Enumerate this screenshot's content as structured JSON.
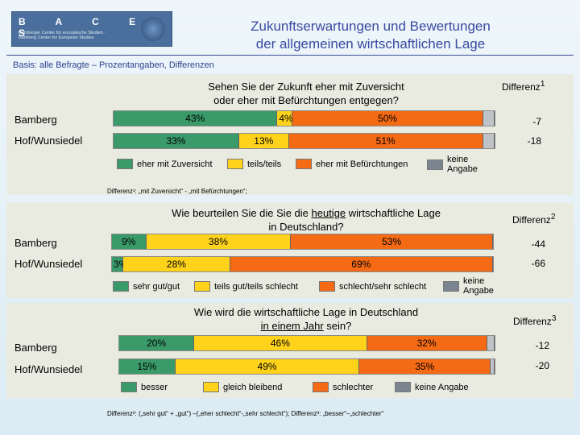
{
  "logo": {
    "word": "B A C E S",
    "tag": "Bamberger Center für europäische Studien · Bamberg Center for European Studies"
  },
  "title_line1": "Zukunftserwartungen und Bewertungen",
  "title_line2": "der allgemeinen wirtschaftlichen Lage",
  "basis": "Basis: alle Befragte – Prozentangaben, Differenzen",
  "colors": {
    "green": "#3a9a6a",
    "yellow": "#ffd21c",
    "orange": "#f56a14",
    "gray": "#bfc3c8",
    "darkgray": "#7a8590"
  },
  "chart_data": [
    {
      "type": "bar",
      "title_line1": "Sehen Sie der Zukunft eher mit Zuversicht",
      "title_line2": "oder eher mit Befürchtungen entgegen?",
      "diff_title": "Differenz",
      "diff_sup": "1",
      "categories": [
        "Bamberg",
        "Hof/Wunsiedel"
      ],
      "series": [
        {
          "name": "eher mit Zuversicht",
          "values": [
            43,
            33
          ]
        },
        {
          "name": "teils/teils",
          "values": [
            4,
            13
          ]
        },
        {
          "name": "eher mit Befürchtungen",
          "values": [
            50,
            51
          ]
        },
        {
          "name": "keine Angabe",
          "values": [
            3,
            3
          ]
        }
      ],
      "labels": [
        [
          "43%",
          "4%",
          "50%",
          ""
        ],
        [
          "33%",
          "13%",
          "51%",
          ""
        ]
      ],
      "differences": [
        "-7",
        "-18"
      ],
      "legend": [
        "eher mit Zuversicht",
        "teils/teils",
        "eher mit Befürchtungen",
        "keine Angabe"
      ],
      "footnote": "Differenz¹: „mit Zuversicht“ - „mit Befürchtungen“;"
    },
    {
      "type": "bar",
      "title_line1a": "Wie beurteilen Sie die Sie die ",
      "title_line1u": "heutige",
      "title_line1b": " wirtschaftliche Lage",
      "title_line2": "in Deutschland?",
      "diff_title": "Differenz",
      "diff_sup": "2",
      "categories": [
        "Bamberg",
        "Hof/Wunsiedel"
      ],
      "series": [
        {
          "name": "sehr gut/gut",
          "values": [
            9,
            3
          ]
        },
        {
          "name": "teils gut/teils schlecht",
          "values": [
            38,
            28
          ]
        },
        {
          "name": "schlecht/sehr schlecht",
          "values": [
            53,
            69
          ]
        }
      ],
      "labels": [
        [
          "9%",
          "38%",
          "53%"
        ],
        [
          "3%",
          "28%",
          "69%"
        ]
      ],
      "differences": [
        "-44",
        "-66"
      ],
      "legend": [
        "sehr gut/gut",
        "teils gut/teils schlecht",
        "schlecht/sehr schlecht",
        "keine Angabe"
      ]
    },
    {
      "type": "bar",
      "title_line1": "Wie wird die wirtschaftliche Lage in Deutschland",
      "title_line2u": "in einem Jahr",
      "title_line2b": " sein?",
      "diff_title": "Differenz",
      "diff_sup": "3",
      "categories": [
        "Bamberg",
        "Hof/Wunsiedel"
      ],
      "series": [
        {
          "name": "besser",
          "values": [
            20,
            15
          ]
        },
        {
          "name": "gleich bleibend",
          "values": [
            46,
            49
          ]
        },
        {
          "name": "schlechter",
          "values": [
            32,
            35
          ]
        },
        {
          "name": "keine Angabe",
          "values": [
            2,
            1
          ]
        }
      ],
      "labels": [
        [
          "20%",
          "46%",
          "32%",
          ""
        ],
        [
          "15%",
          "49%",
          "35%",
          ""
        ]
      ],
      "differences": [
        "-12",
        "-20"
      ],
      "legend": [
        "besser",
        "gleich bleibend",
        "schlechter",
        "keine Angabe"
      ],
      "footnote": "Differenz²: („sehr gut“ + „gut“) –(„eher schlecht“-„sehr schlecht“); Differenz³: „besser“–„schlechter“"
    }
  ]
}
